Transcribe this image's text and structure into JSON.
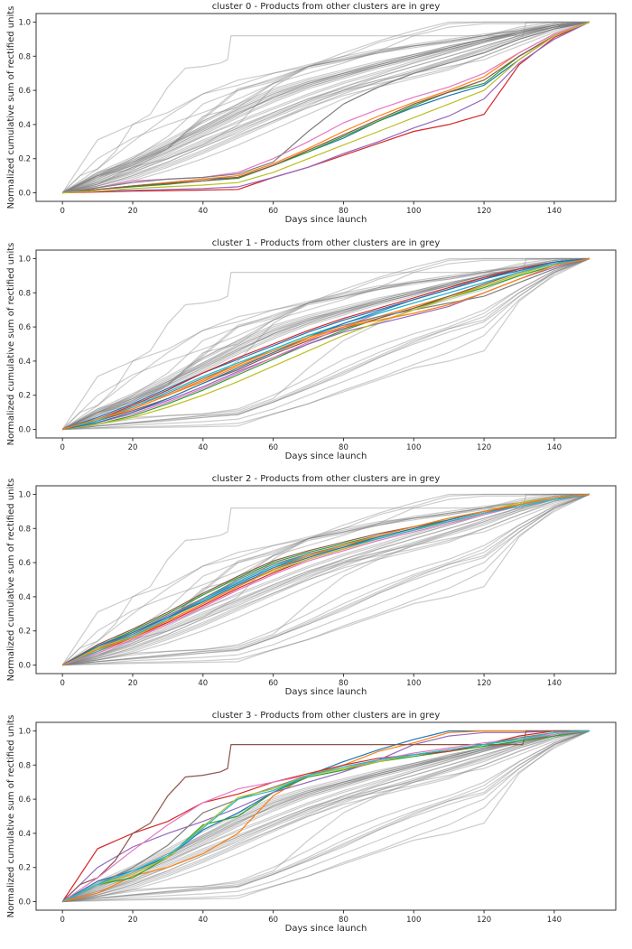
{
  "chart_data": [
    {
      "type": "line",
      "title": "cluster 0 - Products from other clusters are in grey",
      "cluster": 0,
      "xlabel": "Days since launch",
      "ylabel": "Normalized cumulative sum of rectified units",
      "xlim": [
        -7.5,
        157.5
      ],
      "ylim": [
        -0.05,
        1.05
      ],
      "xticks": [
        0,
        20,
        40,
        60,
        80,
        100,
        120,
        140
      ],
      "yticks": [
        0.0,
        0.2,
        0.4,
        0.6,
        0.8,
        1.0
      ],
      "grid": false
    },
    {
      "type": "line",
      "title": "cluster 1 - Products from other clusters are in grey",
      "cluster": 1,
      "xlabel": "Days since launch",
      "ylabel": "Normalized cumulative sum of rectified units",
      "xlim": [
        -7.5,
        157.5
      ],
      "ylim": [
        -0.05,
        1.05
      ],
      "xticks": [
        0,
        20,
        40,
        60,
        80,
        100,
        120,
        140
      ],
      "yticks": [
        0.0,
        0.2,
        0.4,
        0.6,
        0.8,
        1.0
      ],
      "grid": false
    },
    {
      "type": "line",
      "title": "cluster 2 - Products from other clusters are in grey",
      "cluster": 2,
      "xlabel": "Days since launch",
      "ylabel": "Normalized cumulative sum of rectified units",
      "xlim": [
        -7.5,
        157.5
      ],
      "ylim": [
        -0.05,
        1.05
      ],
      "xticks": [
        0,
        20,
        40,
        60,
        80,
        100,
        120,
        140
      ],
      "yticks": [
        0.0,
        0.2,
        0.4,
        0.6,
        0.8,
        1.0
      ],
      "grid": false
    },
    {
      "type": "line",
      "title": "cluster 3 - Products from other clusters are in grey",
      "cluster": 3,
      "xlabel": "Days since launch",
      "ylabel": "Normalized cumulative sum of rectified units",
      "xlim": [
        -7.5,
        157.5
      ],
      "ylim": [
        -0.05,
        1.05
      ],
      "xticks": [
        0,
        20,
        40,
        60,
        80,
        100,
        120,
        140
      ],
      "yticks": [
        0.0,
        0.2,
        0.4,
        0.6,
        0.8,
        1.0
      ],
      "grid": false
    }
  ],
  "colors": {
    "palette": [
      "#1f77b4",
      "#ff7f0e",
      "#2ca02c",
      "#d62728",
      "#9467bd",
      "#8c564b",
      "#e377c2",
      "#7f7f7f",
      "#bcbd22",
      "#17becf"
    ],
    "other_clusters": "#808080",
    "axes": "#333333"
  },
  "x": [
    0,
    10,
    20,
    30,
    40,
    50,
    60,
    70,
    80,
    90,
    100,
    110,
    120,
    130,
    140,
    150
  ],
  "products": [
    {
      "cluster": 0,
      "y": [
        0,
        0.02,
        0.04,
        0.06,
        0.08,
        0.09,
        0.16,
        0.24,
        0.32,
        0.42,
        0.5,
        0.57,
        0.63,
        0.78,
        0.92,
        1
      ]
    },
    {
      "cluster": 0,
      "y": [
        0,
        0.02,
        0.04,
        0.06,
        0.08,
        0.1,
        0.17,
        0.26,
        0.36,
        0.45,
        0.53,
        0.6,
        0.68,
        0.82,
        0.93,
        1
      ]
    },
    {
      "cluster": 0,
      "y": [
        0,
        0.02,
        0.035,
        0.05,
        0.07,
        0.085,
        0.16,
        0.24,
        0.33,
        0.42,
        0.51,
        0.59,
        0.64,
        0.8,
        0.92,
        1
      ]
    },
    {
      "cluster": 0,
      "y": [
        0,
        0.005,
        0.01,
        0.013,
        0.016,
        0.02,
        0.09,
        0.15,
        0.22,
        0.29,
        0.36,
        0.4,
        0.46,
        0.75,
        0.91,
        1
      ]
    },
    {
      "cluster": 0,
      "y": [
        0,
        0.01,
        0.015,
        0.02,
        0.025,
        0.035,
        0.09,
        0.15,
        0.23,
        0.3,
        0.38,
        0.45,
        0.55,
        0.76,
        0.9,
        1
      ]
    },
    {
      "cluster": 0,
      "y": [
        0,
        0.02,
        0.04,
        0.055,
        0.07,
        0.09,
        0.16,
        0.25,
        0.34,
        0.43,
        0.52,
        0.59,
        0.66,
        0.8,
        0.92,
        1
      ]
    },
    {
      "cluster": 0,
      "y": [
        0,
        0.03,
        0.07,
        0.08,
        0.09,
        0.12,
        0.2,
        0.3,
        0.41,
        0.49,
        0.56,
        0.62,
        0.7,
        0.82,
        0.93,
        1
      ]
    },
    {
      "cluster": 0,
      "y": [
        0,
        0.03,
        0.06,
        0.08,
        0.09,
        0.11,
        0.18,
        0.36,
        0.52,
        0.62,
        0.7,
        0.76,
        0.82,
        0.9,
        0.96,
        1
      ]
    },
    {
      "cluster": 0,
      "y": [
        0,
        0.01,
        0.025,
        0.035,
        0.045,
        0.06,
        0.12,
        0.2,
        0.28,
        0.36,
        0.44,
        0.52,
        0.6,
        0.78,
        0.92,
        1
      ]
    },
    {
      "cluster": 1,
      "y": [
        0,
        0.07,
        0.15,
        0.24,
        0.33,
        0.41,
        0.49,
        0.57,
        0.64,
        0.7,
        0.76,
        0.82,
        0.88,
        0.94,
        0.98,
        1
      ]
    },
    {
      "cluster": 1,
      "y": [
        0,
        0.05,
        0.12,
        0.2,
        0.28,
        0.37,
        0.45,
        0.53,
        0.6,
        0.66,
        0.72,
        0.78,
        0.84,
        0.91,
        0.97,
        1
      ]
    },
    {
      "cluster": 1,
      "y": [
        0,
        0.03,
        0.08,
        0.15,
        0.23,
        0.32,
        0.41,
        0.5,
        0.58,
        0.65,
        0.71,
        0.77,
        0.83,
        0.9,
        0.96,
        1
      ]
    },
    {
      "cluster": 1,
      "y": [
        0,
        0.06,
        0.14,
        0.23,
        0.33,
        0.42,
        0.5,
        0.58,
        0.65,
        0.71,
        0.77,
        0.83,
        0.89,
        0.94,
        0.98,
        1
      ]
    },
    {
      "cluster": 1,
      "y": [
        0,
        0.04,
        0.1,
        0.17,
        0.25,
        0.34,
        0.42,
        0.5,
        0.57,
        0.62,
        0.67,
        0.72,
        0.8,
        0.88,
        0.95,
        1
      ]
    },
    {
      "cluster": 1,
      "y": [
        0,
        0.05,
        0.11,
        0.18,
        0.27,
        0.35,
        0.44,
        0.52,
        0.59,
        0.65,
        0.71,
        0.78,
        0.85,
        0.92,
        0.97,
        1
      ]
    },
    {
      "cluster": 1,
      "y": [
        0,
        0.04,
        0.09,
        0.16,
        0.24,
        0.33,
        0.42,
        0.51,
        0.6,
        0.68,
        0.74,
        0.8,
        0.86,
        0.92,
        0.97,
        1
      ]
    },
    {
      "cluster": 1,
      "y": [
        0,
        0.06,
        0.13,
        0.21,
        0.3,
        0.38,
        0.47,
        0.55,
        0.61,
        0.66,
        0.7,
        0.74,
        0.78,
        0.86,
        0.94,
        1
      ]
    },
    {
      "cluster": 1,
      "y": [
        0,
        0.03,
        0.07,
        0.13,
        0.2,
        0.28,
        0.37,
        0.46,
        0.55,
        0.63,
        0.7,
        0.77,
        0.84,
        0.91,
        0.97,
        1
      ]
    },
    {
      "cluster": 1,
      "y": [
        0,
        0.05,
        0.13,
        0.22,
        0.31,
        0.39,
        0.47,
        0.55,
        0.62,
        0.68,
        0.74,
        0.8,
        0.86,
        0.92,
        0.97,
        1
      ]
    },
    {
      "cluster": 1,
      "y": [
        0,
        0.04,
        0.1,
        0.18,
        0.27,
        0.36,
        0.45,
        0.54,
        0.62,
        0.69,
        0.76,
        0.82,
        0.88,
        0.93,
        0.98,
        1
      ]
    },
    {
      "cluster": 1,
      "y": [
        0,
        0.06,
        0.12,
        0.2,
        0.29,
        0.38,
        0.46,
        0.54,
        0.6,
        0.64,
        0.68,
        0.73,
        0.8,
        0.88,
        0.96,
        1
      ]
    },
    {
      "cluster": 2,
      "y": [
        0,
        0.1,
        0.18,
        0.28,
        0.38,
        0.48,
        0.57,
        0.64,
        0.7,
        0.75,
        0.8,
        0.85,
        0.9,
        0.94,
        0.98,
        1
      ]
    },
    {
      "cluster": 2,
      "y": [
        0,
        0.09,
        0.17,
        0.26,
        0.36,
        0.46,
        0.56,
        0.63,
        0.69,
        0.74,
        0.79,
        0.84,
        0.89,
        0.94,
        0.98,
        1
      ]
    },
    {
      "cluster": 2,
      "y": [
        0,
        0.11,
        0.2,
        0.3,
        0.41,
        0.51,
        0.6,
        0.66,
        0.71,
        0.76,
        0.81,
        0.86,
        0.9,
        0.94,
        0.98,
        1
      ]
    },
    {
      "cluster": 2,
      "y": [
        0,
        0.08,
        0.16,
        0.25,
        0.35,
        0.45,
        0.54,
        0.62,
        0.68,
        0.74,
        0.79,
        0.84,
        0.89,
        0.94,
        0.98,
        1
      ]
    },
    {
      "cluster": 2,
      "y": [
        0,
        0.1,
        0.19,
        0.29,
        0.39,
        0.49,
        0.58,
        0.65,
        0.7,
        0.75,
        0.8,
        0.84,
        0.89,
        0.93,
        0.97,
        1
      ]
    },
    {
      "cluster": 2,
      "y": [
        0,
        0.12,
        0.21,
        0.31,
        0.42,
        0.52,
        0.61,
        0.67,
        0.72,
        0.77,
        0.81,
        0.85,
        0.9,
        0.94,
        0.98,
        1
      ]
    },
    {
      "cluster": 2,
      "y": [
        0,
        0.07,
        0.15,
        0.24,
        0.34,
        0.44,
        0.53,
        0.61,
        0.67,
        0.73,
        0.78,
        0.83,
        0.88,
        0.93,
        0.97,
        1
      ]
    },
    {
      "cluster": 2,
      "y": [
        0,
        0.09,
        0.18,
        0.28,
        0.39,
        0.5,
        0.59,
        0.65,
        0.7,
        0.75,
        0.8,
        0.85,
        0.9,
        0.94,
        0.98,
        1
      ]
    },
    {
      "cluster": 2,
      "y": [
        0,
        0.1,
        0.17,
        0.27,
        0.37,
        0.47,
        0.55,
        0.62,
        0.68,
        0.74,
        0.79,
        0.85,
        0.9,
        0.95,
        0.98,
        1
      ]
    },
    {
      "cluster": 2,
      "y": [
        0,
        0.08,
        0.17,
        0.27,
        0.38,
        0.49,
        0.58,
        0.64,
        0.69,
        0.74,
        0.79,
        0.84,
        0.89,
        0.93,
        0.97,
        1
      ]
    },
    {
      "cluster": 2,
      "y": [
        0,
        0.11,
        0.19,
        0.28,
        0.37,
        0.47,
        0.56,
        0.63,
        0.69,
        0.75,
        0.8,
        0.85,
        0.9,
        0.94,
        0.98,
        1
      ]
    },
    {
      "cluster": 2,
      "y": [
        0,
        0.09,
        0.16,
        0.26,
        0.36,
        0.46,
        0.56,
        0.64,
        0.7,
        0.76,
        0.81,
        0.86,
        0.9,
        0.94,
        0.98,
        1
      ]
    },
    {
      "cluster": 3,
      "y": [
        0,
        0.12,
        0.18,
        0.26,
        0.42,
        0.52,
        0.64,
        0.74,
        0.82,
        0.89,
        0.95,
        1,
        1,
        1,
        1,
        1
      ]
    },
    {
      "cluster": 3,
      "y": [
        0,
        0.05,
        0.15,
        0.2,
        0.28,
        0.4,
        0.62,
        0.74,
        0.8,
        0.88,
        0.93,
        0.99,
        1,
        1,
        1,
        1
      ]
    },
    {
      "cluster": 3,
      "y": [
        0,
        0.1,
        0.14,
        0.26,
        0.45,
        0.5,
        0.64,
        0.73,
        0.77,
        0.82,
        0.85,
        0.88,
        0.91,
        0.94,
        0.97,
        1
      ]
    },
    {
      "cluster": 3,
      "y": [
        0,
        0.31,
        0.4,
        0.47,
        0.58,
        0.63,
        0.7,
        0.75,
        0.8,
        0.84,
        0.86,
        0.88,
        0.92,
        0.97,
        1,
        1
      ]
    },
    {
      "cluster": 3,
      "y": [
        0,
        0.2,
        0.32,
        0.4,
        0.47,
        0.55,
        0.64,
        0.7,
        0.76,
        0.83,
        0.92,
        0.97,
        0.99,
        0.99,
        1,
        1
      ]
    },
    {
      "cluster": 3,
      "x": [
        0,
        5,
        10,
        15,
        20,
        25,
        30,
        35,
        40,
        45,
        47,
        48,
        131,
        132,
        150
      ],
      "y": [
        0,
        0.1,
        0.14,
        0.24,
        0.4,
        0.46,
        0.62,
        0.73,
        0.74,
        0.76,
        0.78,
        0.92,
        0.92,
        1,
        1
      ]
    },
    {
      "cluster": 3,
      "y": [
        0,
        0.14,
        0.3,
        0.45,
        0.58,
        0.66,
        0.7,
        0.74,
        0.78,
        0.83,
        0.87,
        0.9,
        0.93,
        0.95,
        0.98,
        1
      ]
    },
    {
      "cluster": 3,
      "y": [
        0,
        0.1,
        0.2,
        0.33,
        0.52,
        0.6,
        0.67,
        0.74,
        0.78,
        0.82,
        0.86,
        0.89,
        0.92,
        0.96,
        0.99,
        1
      ]
    },
    {
      "cluster": 3,
      "y": [
        0,
        0.1,
        0.16,
        0.26,
        0.44,
        0.61,
        0.66,
        0.74,
        0.78,
        0.82,
        0.86,
        0.89,
        0.92,
        0.95,
        0.99,
        1
      ]
    },
    {
      "cluster": 3,
      "y": [
        0,
        0.1,
        0.18,
        0.27,
        0.43,
        0.6,
        0.65,
        0.74,
        0.79,
        0.83,
        0.86,
        0.89,
        0.92,
        0.95,
        0.99,
        1
      ]
    }
  ]
}
